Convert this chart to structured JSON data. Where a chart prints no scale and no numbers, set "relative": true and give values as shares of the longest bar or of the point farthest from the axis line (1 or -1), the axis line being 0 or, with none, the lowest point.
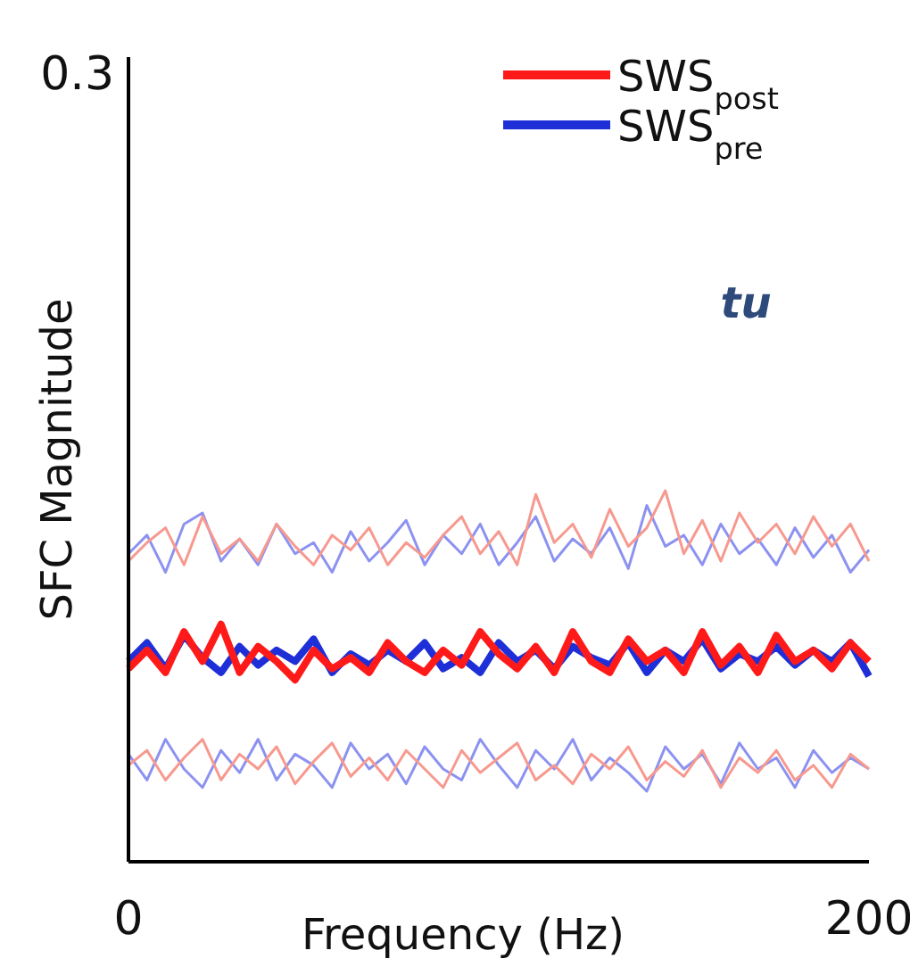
{
  "chart_data": {
    "type": "line",
    "xlabel": "Frequency (Hz)",
    "ylabel": "SFC Magnitude",
    "x": [
      0,
      5,
      10,
      15,
      20,
      25,
      30,
      35,
      40,
      45,
      50,
      55,
      60,
      65,
      70,
      75,
      80,
      85,
      90,
      95,
      100,
      105,
      110,
      115,
      120,
      125,
      130,
      135,
      140,
      145,
      150,
      155,
      160,
      165,
      170,
      175,
      180,
      185,
      190,
      195,
      200
    ],
    "xlim": [
      0,
      200
    ],
    "xticks": [
      0,
      200
    ],
    "relative": true,
    "series": [
      {
        "color": "#8c92f0",
        "values": [
          0.29,
          0.22,
          0.33,
          0.25,
          0.2,
          0.3,
          0.24,
          0.33,
          0.22,
          0.29,
          0.26,
          0.2,
          0.32,
          0.25,
          0.29,
          0.21,
          0.31,
          0.25,
          0.22,
          0.33,
          0.26,
          0.2,
          0.3,
          0.25,
          0.33,
          0.22,
          0.28,
          0.24,
          0.19,
          0.31,
          0.25,
          0.29,
          0.21,
          0.32,
          0.25,
          0.28,
          0.2,
          0.3,
          0.24,
          0.28,
          0.25
        ]
      },
      {
        "color": "#8c92f0",
        "values": [
          0.83,
          0.88,
          0.78,
          0.91,
          0.94,
          0.81,
          0.87,
          0.8,
          0.91,
          0.83,
          0.86,
          0.78,
          0.89,
          0.81,
          0.86,
          0.92,
          0.8,
          0.88,
          0.83,
          0.91,
          0.8,
          0.86,
          0.93,
          0.81,
          0.87,
          0.83,
          0.9,
          0.79,
          0.96,
          0.85,
          0.88,
          0.8,
          0.91,
          0.83,
          0.87,
          0.8,
          0.9,
          0.82,
          0.88,
          0.78,
          0.84
        ]
      },
      {
        "color": "#f7998f",
        "values": [
          0.26,
          0.3,
          0.22,
          0.28,
          0.33,
          0.22,
          0.29,
          0.25,
          0.31,
          0.21,
          0.27,
          0.32,
          0.23,
          0.28,
          0.22,
          0.3,
          0.25,
          0.2,
          0.3,
          0.24,
          0.28,
          0.32,
          0.22,
          0.26,
          0.21,
          0.29,
          0.25,
          0.31,
          0.22,
          0.27,
          0.23,
          0.3,
          0.2,
          0.28,
          0.24,
          0.3,
          0.22,
          0.26,
          0.2,
          0.29,
          0.25
        ]
      },
      {
        "color": "#f7998f",
        "values": [
          0.81,
          0.86,
          0.9,
          0.8,
          0.93,
          0.83,
          0.87,
          0.81,
          0.91,
          0.85,
          0.8,
          0.88,
          0.84,
          0.9,
          0.8,
          0.86,
          0.82,
          0.88,
          0.93,
          0.83,
          0.89,
          0.8,
          0.99,
          0.86,
          0.91,
          0.82,
          0.95,
          0.85,
          0.9,
          1.0,
          0.83,
          0.92,
          0.81,
          0.94,
          0.86,
          0.91,
          0.83,
          0.93,
          0.85,
          0.91,
          0.81
        ]
      },
      {
        "name": "SWS$_{pre}$",
        "color": "#1f2fd8",
        "values": [
          0.54,
          0.59,
          0.52,
          0.61,
          0.55,
          0.51,
          0.58,
          0.53,
          0.57,
          0.54,
          0.6,
          0.51,
          0.56,
          0.53,
          0.57,
          0.54,
          0.59,
          0.52,
          0.55,
          0.51,
          0.59,
          0.54,
          0.57,
          0.52,
          0.58,
          0.55,
          0.53,
          0.59,
          0.51,
          0.57,
          0.54,
          0.6,
          0.52,
          0.56,
          0.54,
          0.58,
          0.53,
          0.57,
          0.54,
          0.59,
          0.5
        ]
      },
      {
        "name": "SWS$_{post}$",
        "color": "#ff1a1a",
        "values": [
          0.52,
          0.57,
          0.51,
          0.62,
          0.54,
          0.64,
          0.51,
          0.58,
          0.54,
          0.49,
          0.57,
          0.52,
          0.55,
          0.51,
          0.59,
          0.54,
          0.51,
          0.57,
          0.53,
          0.62,
          0.56,
          0.52,
          0.58,
          0.51,
          0.62,
          0.54,
          0.51,
          0.6,
          0.54,
          0.57,
          0.51,
          0.62,
          0.53,
          0.58,
          0.51,
          0.61,
          0.54,
          0.57,
          0.52,
          0.59,
          0.54
        ]
      }
    ],
    "legend": "top right",
    "annotations": [
      "0.3",
      "tu"
    ]
  }
}
